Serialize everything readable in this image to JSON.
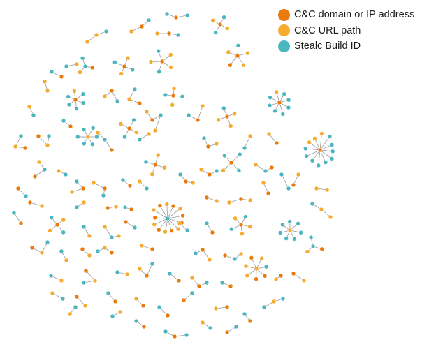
{
  "colors": {
    "cnc_domain": "#ea7a0c",
    "cnc_url": "#f6ab2e",
    "build_id": "#4cb6c0",
    "edge": "#9a9a9a"
  },
  "legend": [
    {
      "key": "cnc_domain",
      "label": "C&C domain or IP address",
      "icon": "orange-dot"
    },
    {
      "key": "cnc_url",
      "label": "C&C URL path",
      "icon": "light-orange-dot"
    },
    {
      "key": "build_id",
      "label": "Stealc Build ID",
      "icon": "teal-dot"
    }
  ]
}
